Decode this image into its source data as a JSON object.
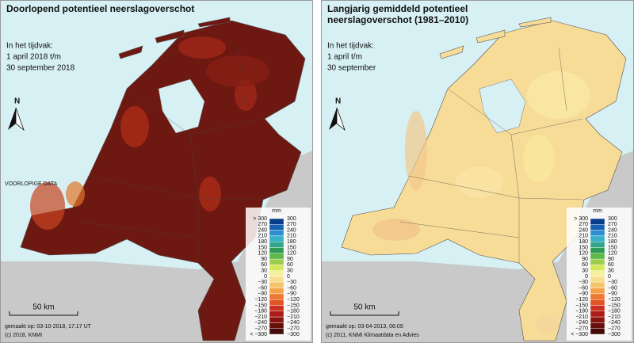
{
  "panels": [
    {
      "title": [
        "Doorlopend potentieel neerslagoverschot"
      ],
      "period_label": "In het tijdvak:",
      "period_lines": [
        "1 april 2018 t/m",
        "30 september 2018"
      ],
      "north": "N",
      "note": "VOORLOPIGE DATA",
      "scale": "50 km",
      "footer": [
        "gemaakt op: 03-10-2018, 17:17 UT",
        "(c) 2018, KNMI"
      ]
    },
    {
      "title": [
        "Langjarig gemiddeld potentieel",
        "neerslagoverschot (1981–2010)"
      ],
      "period_label": "In het tijdvak:",
      "period_lines": [
        "1 april t/m",
        "30 september"
      ],
      "north": "N",
      "scale": "50 km",
      "footer": [
        "gemaakt op: 03-04-2013, 06:09",
        "(c) 2011, KNMI Klimaatdata en Advies"
      ]
    }
  ],
  "legend": {
    "unit": "mm",
    "left_labels": [
      "> 300",
      "270",
      "240",
      "210",
      "180",
      "150",
      "120",
      "90",
      "60",
      "30",
      "0",
      "−30",
      "−60",
      "−90",
      "−120",
      "−150",
      "−180",
      "−210",
      "−240",
      "−270",
      "< −300"
    ],
    "right_labels": [
      "300",
      "270",
      "240",
      "210",
      "180",
      "150",
      "120",
      "90",
      "60",
      "30",
      "0",
      "−30",
      "−60",
      "−90",
      "−120",
      "−150",
      "−180",
      "−210",
      "−240",
      "−270",
      "−300"
    ]
  }
}
